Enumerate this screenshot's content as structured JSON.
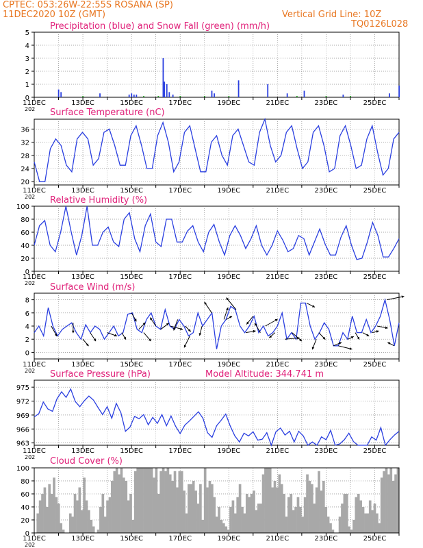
{
  "header": {
    "line1": "CPTEC:   053:26W-22:55S   ROSANA (SP)",
    "line2": "11DEC2020 10Z (GMT)",
    "grid_note": "Vertical Grid Line: 10Z",
    "code": "TQ0126L028"
  },
  "colors": {
    "header": "#e87722",
    "title": "#e0227a",
    "line": "#2a3fe0",
    "snow": "#1a9a1a",
    "cloud": "#a8a8a8",
    "grid": "#8a8a8a"
  },
  "x_ticks": [
    "11DEC",
    "13DEC",
    "15DEC",
    "17DEC",
    "19DEC",
    "21DEC",
    "23DEC",
    "25DEC"
  ],
  "x_tick_year": "202",
  "chart_data": [
    {
      "type": "bar",
      "title": "Precipitation (blue) and Snow Fall (green) (mm/h)",
      "ylim": [
        0,
        5
      ],
      "yticks": [
        "0",
        "1",
        "2",
        "3",
        "4",
        "5"
      ],
      "series": [
        {
          "name": "Precipitation",
          "color": "#2a3fe0",
          "points": [
            [
              1.0,
              0.6
            ],
            [
              1.1,
              0.4
            ],
            [
              2.7,
              0.3
            ],
            [
              3.9,
              0.2
            ],
            [
              4.0,
              0.3
            ],
            [
              4.1,
              0.2
            ],
            [
              4.2,
              0.2
            ],
            [
              5.3,
              3.0
            ],
            [
              5.35,
              1.2
            ],
            [
              5.45,
              1.0
            ],
            [
              5.55,
              0.4
            ],
            [
              5.7,
              0.2
            ],
            [
              7.3,
              0.5
            ],
            [
              7.4,
              0.3
            ],
            [
              8.4,
              1.3
            ],
            [
              9.6,
              1.0
            ],
            [
              10.4,
              0.3
            ],
            [
              11.1,
              0.5
            ],
            [
              12.7,
              0.2
            ],
            [
              14.6,
              0.3
            ],
            [
              15.0,
              0.9
            ]
          ]
        },
        {
          "name": "Snow Fall",
          "color": "#1a9a1a",
          "points": [
            [
              2.0,
              0.1
            ],
            [
              4.5,
              0.1
            ],
            [
              5.1,
              0.1
            ],
            [
              6.0,
              0.1
            ],
            [
              7.0,
              0.1
            ],
            [
              8.0,
              0.1
            ],
            [
              10.8,
              0.1
            ],
            [
              12.0,
              0.1
            ],
            [
              13.0,
              0.1
            ]
          ]
        }
      ]
    },
    {
      "type": "line",
      "title": "Surface Temperature (nC)",
      "ylim": [
        19,
        39
      ],
      "yticks": [
        "20",
        "24",
        "28",
        "32",
        "36"
      ],
      "ytick_values": [
        20,
        24,
        28,
        32,
        36
      ],
      "series": [
        {
          "name": "Temperature",
          "color": "#2a3fe0",
          "values": [
            26,
            20,
            20,
            30,
            33,
            31,
            25,
            23,
            33,
            35,
            33,
            25,
            27,
            35,
            36,
            31,
            25,
            25,
            34,
            37,
            31,
            24,
            24,
            34,
            38,
            32,
            23,
            26,
            35,
            37,
            30,
            23,
            23,
            32,
            34,
            28,
            25,
            34,
            36,
            31,
            26,
            25,
            35,
            39,
            31,
            26,
            28,
            35,
            37,
            30,
            24,
            26,
            35,
            37,
            31,
            23,
            24,
            34,
            37,
            31,
            24,
            25,
            33,
            37,
            29,
            22,
            24,
            33,
            35
          ]
        }
      ]
    },
    {
      "type": "line",
      "title": "Relative Humidity (%)",
      "ylim": [
        0,
        100
      ],
      "yticks": [
        "0",
        "20",
        "40",
        "60",
        "80",
        "100"
      ],
      "ytick_values": [
        0,
        20,
        40,
        60,
        80,
        100
      ],
      "series": [
        {
          "name": "Relative Humidity",
          "color": "#2a3fe0",
          "values": [
            40,
            70,
            78,
            40,
            30,
            60,
            100,
            60,
            25,
            55,
            100,
            40,
            40,
            60,
            68,
            45,
            38,
            80,
            90,
            50,
            30,
            70,
            88,
            45,
            38,
            80,
            80,
            45,
            45,
            62,
            70,
            45,
            30,
            60,
            72,
            45,
            25,
            55,
            70,
            55,
            35,
            50,
            70,
            40,
            25,
            40,
            62,
            48,
            30,
            35,
            55,
            50,
            25,
            45,
            65,
            42,
            25,
            25,
            52,
            70,
            40,
            18,
            20,
            45,
            75,
            55,
            22,
            22,
            35,
            50
          ]
        }
      ]
    },
    {
      "type": "line",
      "title": "Surface Wind (m/s)",
      "ylim": [
        -1,
        9
      ],
      "yticks": [
        "0",
        "2",
        "4",
        "6",
        "8"
      ],
      "ytick_values": [
        0,
        2,
        4,
        6,
        8
      ],
      "series": [
        {
          "name": "Wind Speed",
          "color": "#2a3fe0",
          "values": [
            3,
            4,
            2.5,
            6.8,
            4,
            2.5,
            3.5,
            4,
            4.5,
            3,
            2,
            4.2,
            3,
            4,
            3.5,
            2,
            3,
            4,
            2.5,
            3,
            5.8,
            6,
            3.5,
            3,
            5,
            6,
            4,
            3.5,
            6.5,
            4,
            3.5,
            5,
            4,
            2.5,
            3,
            6,
            4,
            5,
            6,
            0.5,
            4,
            5,
            7,
            6.5,
            4,
            3,
            4,
            5.5,
            3,
            4,
            2.5,
            3,
            4,
            6,
            2,
            3,
            2,
            7.5,
            7.5,
            4,
            2,
            3,
            4.5,
            3.5,
            1,
            1,
            3,
            2,
            5.5,
            3,
            3,
            5,
            3,
            4,
            5.5,
            8,
            5,
            1,
            4.5
          ]
        }
      ],
      "arrows": [
        [
          0.7,
          0.7,
          -3
        ],
        [
          1.6,
          0,
          -3
        ],
        [
          2.0,
          0.7,
          -2
        ],
        [
          2.3,
          0.7,
          -2.5
        ],
        [
          3.0,
          1.2,
          -1
        ],
        [
          3.6,
          0.5,
          -2
        ],
        [
          4.0,
          0.6,
          -2.5
        ],
        [
          4.3,
          0.8,
          2
        ],
        [
          4.5,
          0.9,
          -2.5
        ],
        [
          5.0,
          -0.7,
          2.5
        ],
        [
          5.2,
          1.0,
          1.8
        ],
        [
          5.6,
          1.5,
          -1
        ],
        [
          5.9,
          -0.5,
          -3.2
        ],
        [
          6.2,
          0.7,
          -1.6
        ],
        [
          6.4,
          -0.7,
          -3.4
        ],
        [
          6.9,
          -0.3,
          -2.8
        ],
        [
          7.3,
          -0.9,
          3.2
        ],
        [
          7.8,
          0.5,
          3.5
        ],
        [
          7.9,
          0.7,
          1
        ],
        [
          8.3,
          -1.2,
          3.5
        ],
        [
          8.7,
          1.2,
          0.5
        ],
        [
          9.0,
          -0.8,
          -2.4
        ],
        [
          9.3,
          -0.7,
          2.8
        ],
        [
          9.5,
          1.5,
          2
        ],
        [
          9.9,
          -0.7,
          -1.5
        ],
        [
          10.3,
          1.8,
          0.4
        ],
        [
          10.6,
          1.2,
          -2.5
        ],
        [
          11.2,
          1.0,
          -1.2
        ],
        [
          11.6,
          -0.5,
          -3
        ],
        [
          11.7,
          0.8,
          -2
        ],
        [
          12.3,
          1.0,
          1
        ],
        [
          12.5,
          1.7,
          -1
        ],
        [
          12.9,
          0.7,
          0.8
        ],
        [
          13.2,
          0.5,
          -2
        ],
        [
          13.5,
          0.8,
          -1
        ],
        [
          13.9,
          0.8,
          0.5
        ],
        [
          14.1,
          1.3,
          -0.6
        ],
        [
          14.5,
          2.1,
          1
        ],
        [
          14.8,
          -0.8,
          1
        ]
      ]
    },
    {
      "type": "line",
      "title": "Surface Pressure (hPa)",
      "annotation": "Model Altitude: 344.741 m",
      "ylim": [
        962.5,
        976.5
      ],
      "yticks": [
        "963",
        "966",
        "969",
        "972",
        "975"
      ],
      "ytick_values": [
        963,
        966,
        969,
        972,
        975
      ],
      "series": [
        {
          "name": "Pressure",
          "color": "#2a3fe0",
          "values": [
            968.6,
            969.3,
            971.8,
            970.3,
            969.8,
            972.5,
            974,
            972.8,
            974.6,
            971.9,
            970.8,
            972.1,
            973.1,
            972.2,
            970.6,
            969.1,
            970.8,
            968.3,
            971.5,
            969.5,
            965.5,
            966.4,
            968.7,
            968.2,
            969.1,
            966.9,
            968.5,
            967.2,
            969.1,
            966.7,
            968.8,
            966.6,
            965,
            966.8,
            967.7,
            968.7,
            969.7,
            968.3,
            965.2,
            964.2,
            966.7,
            967.9,
            969.2,
            966.6,
            964.5,
            963.2,
            965.1,
            964.5,
            965.4,
            963.6,
            963.8,
            965.2,
            961.5,
            965.4,
            966.2,
            964.7,
            965.5,
            963.2,
            965.5,
            964.5,
            961.6,
            963.2,
            962.5,
            964.3,
            963.7,
            965.7,
            961.8,
            962.8,
            963.7,
            965.1,
            963.3,
            962,
            961.2,
            962.4,
            964.3,
            963.6,
            966.3,
            961.8,
            963.7,
            964.7,
            965.5
          ]
        }
      ]
    },
    {
      "type": "area",
      "title": "Cloud Cover (%)",
      "ylim": [
        0,
        100
      ],
      "yticks": [
        "0",
        "20",
        "40",
        "60",
        "80",
        "100"
      ],
      "ytick_values": [
        0,
        20,
        40,
        60,
        80,
        100
      ],
      "series": [
        {
          "name": "Cloud Cover",
          "color": "#a8a8a8",
          "values": [
            0,
            30,
            50,
            60,
            70,
            40,
            75,
            60,
            85,
            55,
            45,
            15,
            5,
            0,
            0,
            30,
            25,
            60,
            50,
            70,
            35,
            85,
            50,
            35,
            20,
            10,
            0,
            5,
            40,
            60,
            25,
            50,
            55,
            80,
            95,
            100,
            90,
            100,
            85,
            80,
            50,
            60,
            20,
            95,
            100,
            100,
            100,
            100,
            100,
            100,
            100,
            85,
            100,
            60,
            95,
            100,
            95,
            100,
            90,
            80,
            95,
            70,
            95,
            95,
            65,
            30,
            75,
            75,
            80,
            65,
            45,
            75,
            20,
            100,
            70,
            80,
            75,
            55,
            25,
            40,
            20,
            15,
            10,
            5,
            40,
            50,
            30,
            55,
            75,
            40,
            30,
            60,
            55,
            60,
            65,
            35,
            45,
            45,
            90,
            100,
            100,
            100,
            70,
            80,
            70,
            90,
            75,
            60,
            25,
            55,
            60,
            35,
            40,
            55,
            40,
            25,
            55,
            90,
            80,
            75,
            45,
            70,
            95,
            65,
            80,
            40,
            25,
            15,
            5,
            0,
            0,
            25,
            45,
            60,
            60,
            10,
            5,
            20,
            55,
            60,
            50,
            40,
            30,
            30,
            50,
            35,
            45,
            30,
            15,
            85,
            95,
            100,
            90,
            100,
            80,
            90,
            100
          ]
        }
      ]
    }
  ]
}
